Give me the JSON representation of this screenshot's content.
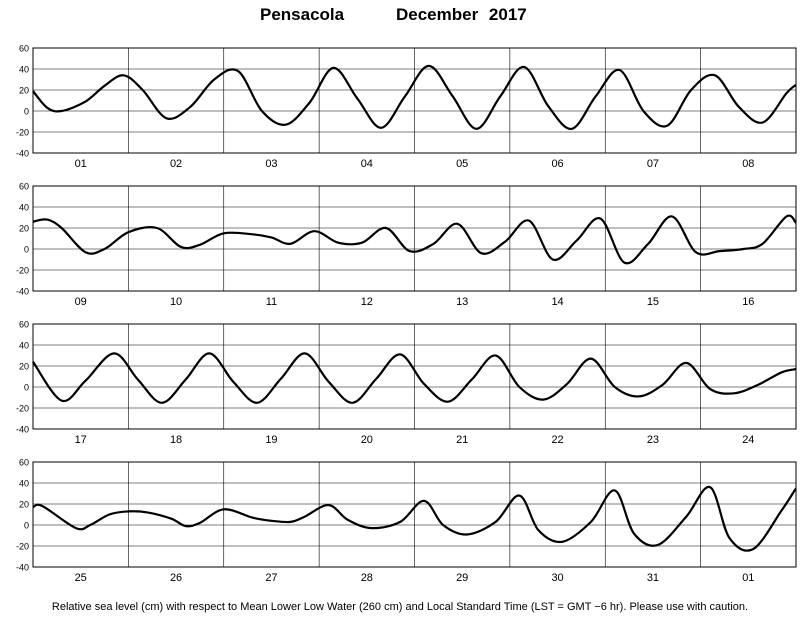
{
  "title_station": "Pensacola",
  "title_period": "December 2017",
  "footnote": "Relative sea level (cm) with respect to Mean Lower Low Water (260 cm) and Local Standard Time (LST = GMT −6 hr). Please use with caution.",
  "chart_data": [
    {
      "type": "line",
      "categories": [
        "01",
        "02",
        "03",
        "04",
        "05",
        "06",
        "07",
        "08"
      ],
      "ylim": [
        -40,
        60
      ],
      "yticks": [
        -40,
        -20,
        0,
        20,
        40,
        60
      ],
      "grid": true,
      "series": [
        {
          "x": [
            0,
            0.15,
            0.3,
            0.55,
            0.75,
            0.95,
            1.15,
            1.4,
            1.65,
            1.9,
            2.15,
            2.4,
            2.65,
            2.9,
            3.15,
            3.4,
            3.65,
            3.9,
            4.15,
            4.4,
            4.65,
            4.9,
            5.15,
            5.4,
            5.65,
            5.9,
            6.15,
            6.4,
            6.65,
            6.9,
            7.15,
            7.4,
            7.65,
            7.9,
            8.0
          ],
          "y": [
            19,
            3,
            0,
            9,
            24,
            34,
            20,
            -7,
            4,
            30,
            38,
            0,
            -13,
            8,
            41,
            12,
            -16,
            14,
            43,
            14,
            -17,
            14,
            42,
            5,
            -17,
            14,
            39,
            0,
            -14,
            20,
            34,
            4,
            -11,
            17,
            25
          ]
        }
      ]
    },
    {
      "type": "line",
      "categories": [
        "09",
        "10",
        "11",
        "12",
        "13",
        "14",
        "15",
        "16"
      ],
      "ylim": [
        -40,
        60
      ],
      "yticks": [
        -40,
        -20,
        0,
        20,
        40,
        60
      ],
      "grid": true,
      "series": [
        {
          "x": [
            0,
            0.15,
            0.3,
            0.55,
            0.75,
            1.0,
            1.3,
            1.55,
            1.75,
            2.0,
            2.3,
            2.5,
            2.7,
            2.95,
            3.2,
            3.45,
            3.7,
            3.95,
            4.2,
            4.45,
            4.7,
            4.95,
            5.2,
            5.45,
            5.7,
            5.95,
            6.2,
            6.45,
            6.7,
            6.95,
            7.2,
            7.45,
            7.65,
            7.9,
            8.0
          ],
          "y": [
            26,
            28,
            20,
            -3,
            0,
            16,
            20,
            2,
            4,
            15,
            14,
            11,
            5,
            17,
            6,
            6,
            20,
            -2,
            5,
            24,
            -4,
            7,
            27,
            -10,
            8,
            29,
            -13,
            5,
            31,
            -3,
            -2,
            0,
            5,
            31,
            25
          ]
        }
      ]
    },
    {
      "type": "line",
      "categories": [
        "17",
        "18",
        "19",
        "20",
        "21",
        "22",
        "23",
        "24"
      ],
      "ylim": [
        -40,
        60
      ],
      "yticks": [
        -40,
        -20,
        0,
        20,
        40,
        60
      ],
      "grid": true,
      "series": [
        {
          "x": [
            0,
            0.3,
            0.55,
            0.85,
            1.1,
            1.35,
            1.6,
            1.85,
            2.1,
            2.35,
            2.6,
            2.85,
            3.1,
            3.35,
            3.6,
            3.85,
            4.1,
            4.35,
            4.6,
            4.85,
            5.1,
            5.35,
            5.6,
            5.85,
            6.1,
            6.35,
            6.6,
            6.85,
            7.1,
            7.35,
            7.6,
            7.85,
            8.0
          ],
          "y": [
            24,
            -13,
            6,
            32,
            7,
            -15,
            7,
            32,
            5,
            -15,
            8,
            32,
            5,
            -15,
            8,
            31,
            3,
            -14,
            7,
            30,
            0,
            -12,
            3,
            27,
            0,
            -9,
            2,
            23,
            -2,
            -6,
            2,
            14,
            17
          ]
        }
      ]
    },
    {
      "type": "line",
      "categories": [
        "25",
        "26",
        "27",
        "28",
        "29",
        "30",
        "31",
        "01"
      ],
      "ylim": [
        -40,
        60
      ],
      "yticks": [
        -40,
        -20,
        0,
        20,
        40,
        60
      ],
      "grid": true,
      "series": [
        {
          "x": [
            0,
            0.1,
            0.45,
            0.6,
            0.8,
            1.0,
            1.2,
            1.45,
            1.6,
            1.75,
            2.0,
            2.3,
            2.5,
            2.7,
            2.85,
            3.1,
            3.3,
            3.55,
            3.85,
            4.1,
            4.3,
            4.55,
            4.85,
            5.1,
            5.3,
            5.55,
            5.85,
            6.1,
            6.3,
            6.55,
            6.85,
            7.1,
            7.3,
            7.55,
            7.85,
            8.0
          ],
          "y": [
            17,
            18,
            -3,
            0,
            10,
            13,
            12,
            6,
            -1,
            2,
            15,
            7,
            4,
            3,
            8,
            19,
            5,
            -3,
            3,
            23,
            0,
            -9,
            3,
            28,
            -5,
            -16,
            3,
            33,
            -8,
            -19,
            8,
            36,
            -12,
            -23,
            14,
            35
          ]
        }
      ]
    }
  ]
}
